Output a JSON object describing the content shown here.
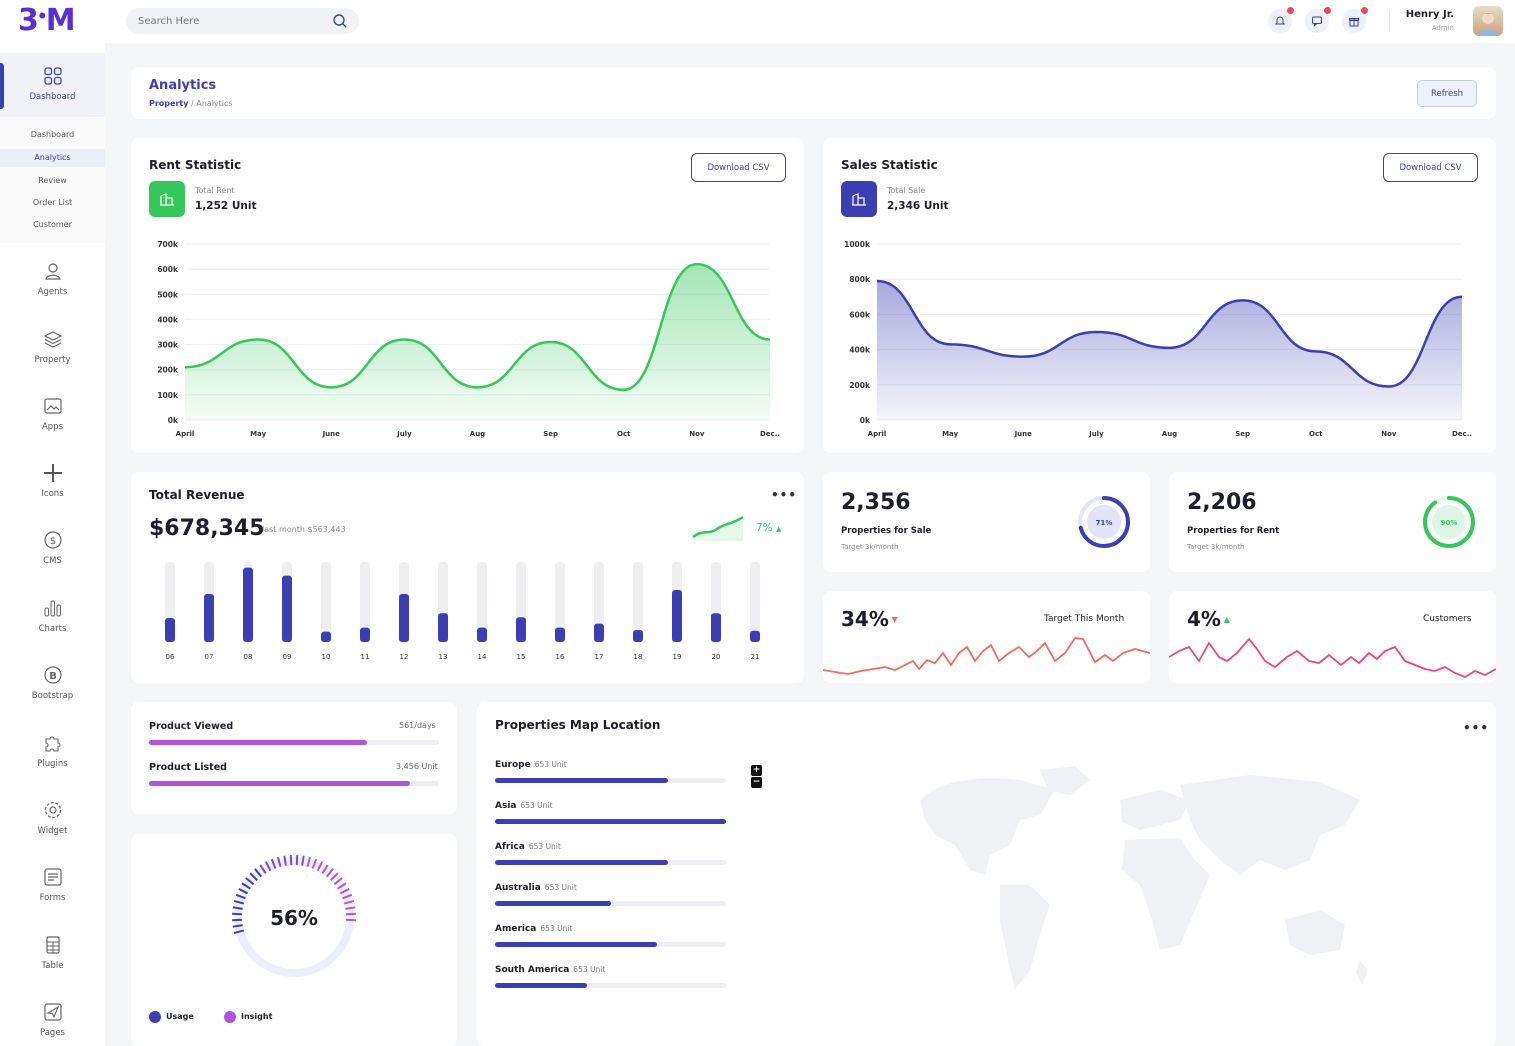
{
  "header": {
    "logo": "3",
    "logo_tail": "M",
    "search_placeholder": "Search Here",
    "user_name": "Henry Jr.",
    "user_role": "Admin"
  },
  "sidebar": {
    "items": [
      {
        "label": "Dashboard",
        "icon": "grid-icon"
      },
      {
        "label": "Agents",
        "icon": "user-icon"
      },
      {
        "label": "Property",
        "icon": "layers-icon"
      },
      {
        "label": "Apps",
        "icon": "gallery-icon"
      },
      {
        "label": "Icons",
        "icon": "plus-icon"
      },
      {
        "label": "CMS",
        "icon": "dollar-icon"
      },
      {
        "label": "Charts",
        "icon": "bar-chart-icon"
      },
      {
        "label": "Bootstrap",
        "icon": "bootstrap-icon"
      },
      {
        "label": "Plugins",
        "icon": "puzzle-icon"
      },
      {
        "label": "Widget",
        "icon": "gear-icon"
      },
      {
        "label": "Forms",
        "icon": "form-icon"
      },
      {
        "label": "Table",
        "icon": "table-icon"
      },
      {
        "label": "Pages",
        "icon": "send-icon"
      }
    ],
    "sub_items": [
      "Dashboard",
      "Analytics",
      "Review",
      "Order List",
      "Customer"
    ]
  },
  "page": {
    "title": "Analytics",
    "crumb_parent": "Property",
    "crumb_sep": "/",
    "crumb_current": "Analytics",
    "refresh_label": "Refresh"
  },
  "rent": {
    "title": "Rent Statistic",
    "download_label": "Download CSV",
    "kpi_label": "Total Rent",
    "kpi_value": "1,252 Unit"
  },
  "sales": {
    "title": "Sales Statistic",
    "download_label": "Download CSV",
    "kpi_label": "Total Sale",
    "kpi_value": "2,346 Unit"
  },
  "revenue": {
    "title": "Total Revenue",
    "amount": "$678,345",
    "last_month": "last month $563,443",
    "change": "7%"
  },
  "for_sale": {
    "value": "2,356",
    "label": "Properties for Sale",
    "target": "Target 3k/month",
    "ring_text": "71%",
    "ring_value": 71
  },
  "for_rent": {
    "value": "2,206",
    "label": "Properties for Rent",
    "target": "Target 3k/month",
    "ring_text": "90%",
    "ring_value": 90
  },
  "target_card": {
    "value": "34%",
    "label": "Target This Month"
  },
  "customers_card": {
    "value": "4%",
    "label": "Customers"
  },
  "products": {
    "viewed_label": "Product Viewed",
    "viewed_value": "561/days",
    "viewed_progress": 0.75,
    "listed_label": "Product Listed",
    "listed_value": "3,456 Unit",
    "listed_progress": 0.9
  },
  "gauge": {
    "value_text": "56%",
    "value": 56,
    "legend": [
      "Usage",
      "Insight"
    ]
  },
  "map": {
    "title": "Properties Map Location",
    "regions": [
      {
        "name": "Europe",
        "units": "653 Unit",
        "progress": 0.75
      },
      {
        "name": "Asia",
        "units": "653 Unit",
        "progress": 1.0
      },
      {
        "name": "Africa",
        "units": "653 Unit",
        "progress": 0.75
      },
      {
        "name": "Australia",
        "units": "653 Unit",
        "progress": 0.5
      },
      {
        "name": "America",
        "units": "653 Unit",
        "progress": 0.7
      },
      {
        "name": "South America",
        "units": "653 Unit",
        "progress": 0.4
      }
    ]
  },
  "colors": {
    "primary": "#3b3fb3",
    "green": "#35c75a",
    "purple": "#b452e0",
    "red": "#f56a5b",
    "pink": "#f0457a"
  },
  "chart_data": [
    {
      "type": "area",
      "title": "Rent Statistic",
      "categories": [
        "April",
        "May",
        "June",
        "July",
        "Aug",
        "Sep",
        "Oct",
        "Nov",
        "Dec.."
      ],
      "yticks": [
        "700k",
        "600k",
        "500k",
        "400k",
        "300k",
        "200k",
        "100k",
        "0k"
      ],
      "ylim": [
        0,
        700
      ],
      "values": [
        210,
        320,
        130,
        320,
        130,
        310,
        120,
        620,
        320
      ],
      "grid": true
    },
    {
      "type": "area",
      "title": "Sales Statistic",
      "categories": [
        "April",
        "May",
        "June",
        "July",
        "Aug",
        "Sep",
        "Oct",
        "Nov",
        "Dec.."
      ],
      "yticks": [
        "1000k",
        "800k",
        "600k",
        "400k",
        "200k",
        "0k"
      ],
      "ylim": [
        0,
        1000
      ],
      "values": [
        790,
        430,
        360,
        500,
        410,
        680,
        390,
        190,
        700
      ],
      "grid": true
    },
    {
      "type": "bar",
      "title": "Total Revenue",
      "categories": [
        "06",
        "07",
        "08",
        "09",
        "10",
        "11",
        "12",
        "13",
        "14",
        "15",
        "16",
        "17",
        "18",
        "19",
        "20",
        "21"
      ],
      "values": [
        30,
        60,
        93,
        83,
        13,
        18,
        60,
        36,
        18,
        31,
        18,
        23,
        15,
        65,
        36,
        14
      ],
      "ylim": [
        0,
        100
      ]
    }
  ]
}
